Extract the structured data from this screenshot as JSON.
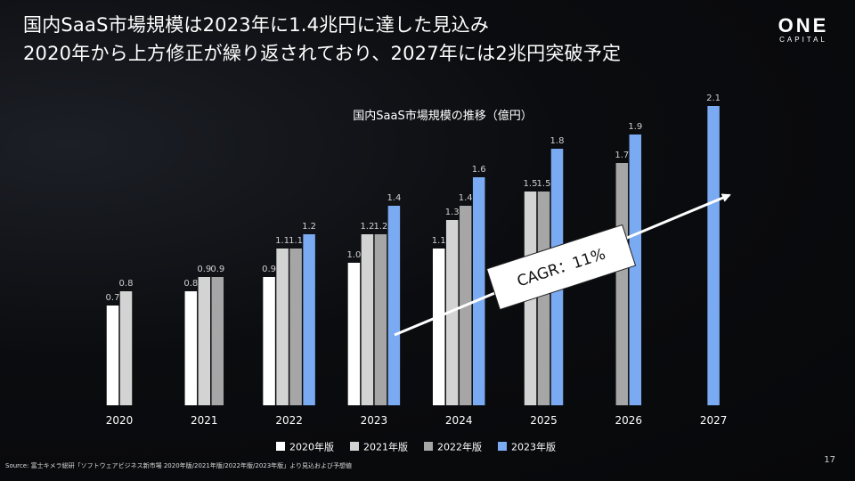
{
  "headline": {
    "line1": "国内SaaS市場規模は2023年に1.4兆円に達した見込み",
    "line2": "2020年から上方修正が繰り返されており、2027年には2兆円突破予定"
  },
  "logo": {
    "main": "ONE",
    "sub": "CAPITAL"
  },
  "source": "Source: 富士キメラ総研「ソフトウェアビジネス新市場 2020年版/2021年版/2022年版/2023年版」より見込および予想値",
  "page_number": "17",
  "annotation": {
    "text": "CAGR：11%"
  },
  "colors": {
    "s2020": "#ffffff",
    "s2021": "#d3d3d3",
    "s2022": "#a6a6a6",
    "s2023": "#7aaaf2"
  },
  "chart_data": {
    "type": "bar",
    "title": "国内SaaS市場規模の推移（億円）",
    "categories": [
      "2020",
      "2021",
      "2022",
      "2023",
      "2024",
      "2025",
      "2026",
      "2027"
    ],
    "ylim": [
      0,
      2.4
    ],
    "series": [
      {
        "name": "2020年版",
        "color": "#ffffff",
        "values": [
          0.7,
          0.8,
          0.9,
          1.0,
          1.1,
          null,
          null,
          null
        ],
        "labels": [
          "0.7",
          "0.8",
          "0.9",
          "1.0",
          "1.1",
          "",
          "",
          ""
        ]
      },
      {
        "name": "2021年版",
        "color": "#d3d3d3",
        "values": [
          0.8,
          0.9,
          1.1,
          1.2,
          1.3,
          1.5,
          null,
          null
        ],
        "labels": [
          "0.8",
          "0.9",
          "1.1",
          "1.2",
          "1.3",
          "1.5",
          "",
          ""
        ]
      },
      {
        "name": "2022年版",
        "color": "#a6a6a6",
        "values": [
          null,
          0.9,
          1.1,
          1.2,
          1.4,
          1.5,
          1.7,
          null
        ],
        "labels": [
          "",
          "0.9",
          "1.1",
          "1.2",
          "1.4",
          "1.5",
          "1.7",
          ""
        ]
      },
      {
        "name": "2023年版",
        "color": "#7aaaf2",
        "values": [
          null,
          null,
          1.2,
          1.4,
          1.6,
          1.8,
          1.9,
          2.1
        ],
        "labels": [
          "",
          "",
          "1.2",
          "1.4",
          "1.6",
          "1.8",
          "1.9",
          "2.1"
        ]
      }
    ],
    "legend": [
      "2020年版",
      "2021年版",
      "2022年版",
      "2023年版"
    ]
  }
}
